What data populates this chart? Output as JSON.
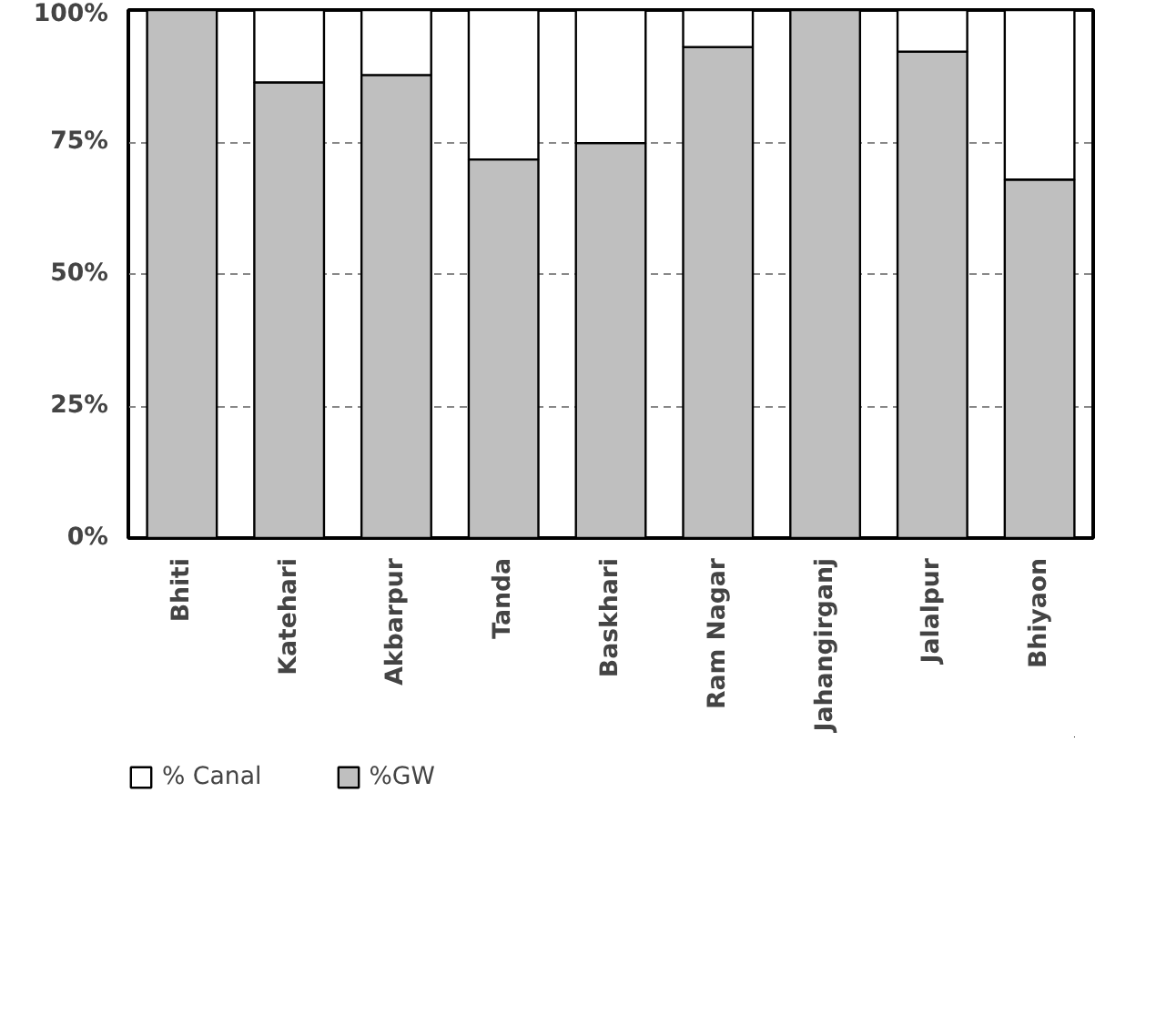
{
  "chart_data": {
    "type": "bar",
    "stacked": true,
    "categories": [
      "Bhiti",
      "Katehari",
      "Akbarpur",
      "Tanda",
      "Baskhari",
      "Ram Nagar",
      "Jahangirganj",
      "Jalalpur",
      "Bhiyaon"
    ],
    "series": [
      {
        "name": "%GW",
        "color": "#bfbfbf",
        "values": [
          100,
          86.3,
          87.7,
          71.7,
          74.8,
          93.0,
          100,
          92.1,
          67.9
        ]
      },
      {
        "name": "% Canal",
        "color": "#ffffff",
        "values": [
          0,
          13.7,
          12.3,
          28.3,
          25.2,
          7.0,
          0,
          7.9,
          32.1
        ]
      }
    ],
    "ylim": [
      0,
      100
    ],
    "yticks": [
      {
        "value": 0,
        "label": "0%"
      },
      {
        "value": 25,
        "label": "25%"
      },
      {
        "value": 50,
        "label": "50%"
      },
      {
        "value": 75,
        "label": "75%"
      },
      {
        "value": 100,
        "label": "100%"
      }
    ],
    "grid": "y",
    "legend": "bottom"
  }
}
